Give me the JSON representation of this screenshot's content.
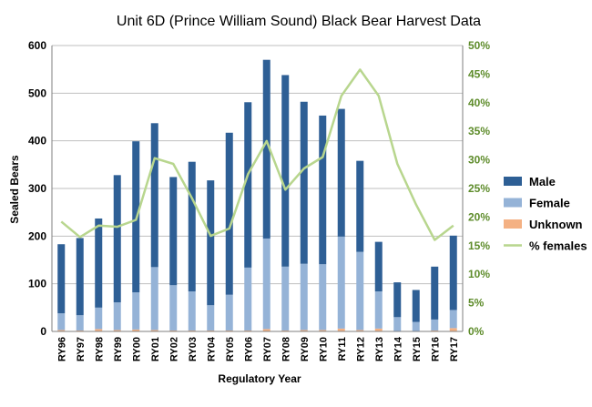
{
  "chart_data": {
    "type": "bar",
    "title": "Unit 6D (Prince William Sound) Black Bear Harvest Data",
    "xlabel": "Regulatory Year",
    "ylabel": "Sealed Bears",
    "ylim": [
      0,
      600
    ],
    "y_ticks": [
      "0",
      "100",
      "200",
      "300",
      "400",
      "500",
      "600"
    ],
    "y_tick_values": [
      0,
      100,
      200,
      300,
      400,
      500,
      600
    ],
    "y2lim": [
      0,
      0.5
    ],
    "y2_ticks": [
      "0%",
      "5%",
      "10%",
      "15%",
      "20%",
      "25%",
      "30%",
      "35%",
      "40%",
      "45%",
      "50%"
    ],
    "y2_tick_values": [
      0,
      0.05,
      0.1,
      0.15,
      0.2,
      0.25,
      0.3,
      0.35,
      0.4,
      0.45,
      0.5
    ],
    "grid": true,
    "legend_position": "right",
    "stacked": true,
    "categories": [
      "RY96",
      "RY97",
      "RY98",
      "RY99",
      "RY00",
      "RY01",
      "RY02",
      "RY03",
      "RY04",
      "RY05",
      "RY06",
      "RY07",
      "RY08",
      "RY09",
      "RY10",
      "RY11",
      "RY12",
      "RY13",
      "RY14",
      "RY15",
      "RY16",
      "RY17"
    ],
    "series": [
      {
        "name": "Male",
        "color": "#2E5F95",
        "kind": "bar",
        "values": [
          145,
          162,
          187,
          267,
          317,
          302,
          227,
          272,
          262,
          340,
          347,
          375,
          402,
          340,
          312,
          268,
          191,
          104,
          73,
          67,
          111,
          156
        ]
      },
      {
        "name": "Female",
        "color": "#95B3D7",
        "kind": "bar",
        "values": [
          35,
          32,
          45,
          58,
          78,
          132,
          95,
          82,
          53,
          75,
          132,
          190,
          134,
          139,
          138,
          193,
          164,
          78,
          30,
          20,
          23,
          38
        ]
      },
      {
        "name": "Unknown",
        "color": "#F4B183",
        "kind": "bar",
        "values": [
          3,
          2,
          5,
          3,
          4,
          3,
          2,
          2,
          2,
          2,
          2,
          5,
          2,
          3,
          3,
          6,
          3,
          6,
          0,
          0,
          2,
          7
        ]
      },
      {
        "name": "% females",
        "color": "#B8D68E",
        "kind": "line",
        "axis": "right",
        "values": [
          0.192,
          0.165,
          0.185,
          0.183,
          0.195,
          0.303,
          0.293,
          0.233,
          0.167,
          0.18,
          0.275,
          0.333,
          0.248,
          0.285,
          0.305,
          0.412,
          0.458,
          0.412,
          0.293,
          0.222,
          0.16,
          0.185
        ]
      }
    ],
    "colors": {
      "left_axis_text": "#000000",
      "right_axis_text": "#5E8C2B",
      "grid": "#BFBFBF"
    }
  }
}
